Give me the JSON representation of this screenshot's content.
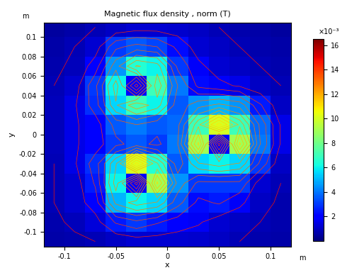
{
  "chart_data": {
    "type": "heatmap",
    "title": "Magnetic flux density , norm (T)",
    "x_label": "x",
    "y_label": "y",
    "x_unit": "m",
    "y_unit": "m",
    "xlim": [
      -0.12,
      0.12
    ],
    "ylim": [
      -0.115,
      0.115
    ],
    "xticks": [
      -0.1,
      -0.05,
      0,
      0.05,
      0.1
    ],
    "yticks": [
      -0.1,
      -0.08,
      -0.06,
      -0.04,
      -0.02,
      0,
      0.02,
      0.04,
      0.06,
      0.08,
      0.1
    ],
    "x_edges": [
      -0.12,
      -0.1,
      -0.08,
      -0.06,
      -0.04,
      -0.02,
      0,
      0.02,
      0.04,
      0.06,
      0.08,
      0.1,
      0.12
    ],
    "y_edges": [
      -0.12,
      -0.1,
      -0.08,
      -0.06,
      -0.04,
      -0.02,
      0,
      0.02,
      0.04,
      0.06,
      0.08,
      0.1,
      0.12
    ],
    "cells": [
      [
        0.0006,
        0.0007,
        0.0008,
        0.001,
        0.0012,
        0.0012,
        0.0012,
        0.0011,
        0.001,
        0.0008,
        0.0007,
        0.0006
      ],
      [
        0.0007,
        0.0009,
        0.0013,
        0.0025,
        0.003,
        0.0025,
        0.002,
        0.0017,
        0.0012,
        0.001,
        0.0008,
        0.0007
      ],
      [
        0.0008,
        0.0012,
        0.002,
        0.005,
        0.006,
        0.0055,
        0.0035,
        0.0022,
        0.0025,
        0.0018,
        0.001,
        0.0007
      ],
      [
        0.0008,
        0.0012,
        0.0025,
        0.006,
        0.002,
        0.009,
        0.0045,
        0.003,
        0.003,
        0.003,
        0.0012,
        0.0008
      ],
      [
        0.0008,
        0.0015,
        0.0028,
        0.0055,
        0.01,
        0.0065,
        0.0035,
        0.0055,
        0.006,
        0.0055,
        0.003,
        0.001
      ],
      [
        0.0009,
        0.0015,
        0.002,
        0.003,
        0.0035,
        0.003,
        0.004,
        0.009,
        0.002,
        0.009,
        0.004,
        0.0015
      ],
      [
        0.0009,
        0.0015,
        0.002,
        0.0035,
        0.004,
        0.0035,
        0.0038,
        0.007,
        0.01,
        0.007,
        0.0038,
        0.0015
      ],
      [
        0.0009,
        0.0015,
        0.0028,
        0.0055,
        0.007,
        0.006,
        0.0035,
        0.0045,
        0.005,
        0.0045,
        0.0025,
        0.001
      ],
      [
        0.0008,
        0.0012,
        0.003,
        0.006,
        0.002,
        0.007,
        0.004,
        0.0022,
        0.0018,
        0.0015,
        0.001,
        0.0008
      ],
      [
        0.0007,
        0.0009,
        0.002,
        0.0045,
        0.0065,
        0.006,
        0.003,
        0.0018,
        0.0012,
        0.001,
        0.0008,
        0.0007
      ],
      [
        0.0006,
        0.0008,
        0.0012,
        0.003,
        0.0035,
        0.0032,
        0.0022,
        0.0012,
        0.001,
        0.0008,
        0.0007,
        0.0006
      ],
      [
        0.0005,
        0.0006,
        0.0008,
        0.001,
        0.0012,
        0.0012,
        0.0011,
        0.001,
        0.0008,
        0.0007,
        0.0006,
        0.0005
      ]
    ],
    "colorbar_range": [
      0,
      0.0165
    ],
    "colorbar_ticks": [
      {
        "value": 0.002,
        "label": "2"
      },
      {
        "value": 0.004,
        "label": "4"
      },
      {
        "value": 0.006,
        "label": "6"
      },
      {
        "value": 0.008,
        "label": "8"
      },
      {
        "value": 0.01,
        "label": "10"
      },
      {
        "value": 0.012,
        "label": "12"
      },
      {
        "value": 0.014,
        "label": "14"
      },
      {
        "value": 0.016,
        "label": "16"
      }
    ],
    "colorbar_multiplier": "×10⁻³"
  }
}
